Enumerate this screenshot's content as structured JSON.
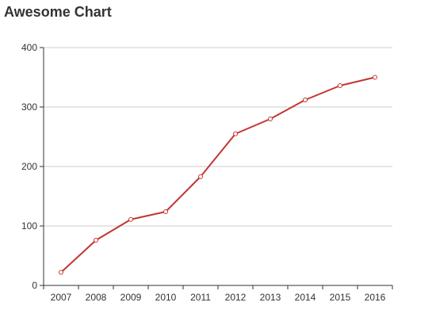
{
  "chart_data": {
    "type": "line",
    "title": "Awesome Chart",
    "xlabel": "",
    "ylabel": "",
    "categories": [
      "2007",
      "2008",
      "2009",
      "2010",
      "2011",
      "2012",
      "2013",
      "2014",
      "2015",
      "2016"
    ],
    "series": [
      {
        "values": [
          22,
          76,
          111,
          124,
          183,
          255,
          280,
          312,
          336,
          350
        ],
        "color": "#c23531"
      }
    ],
    "ylim": [
      0,
      400
    ],
    "yticks": [
      0,
      100,
      200,
      300,
      400
    ],
    "grid": "horizontal",
    "legend": "none"
  }
}
